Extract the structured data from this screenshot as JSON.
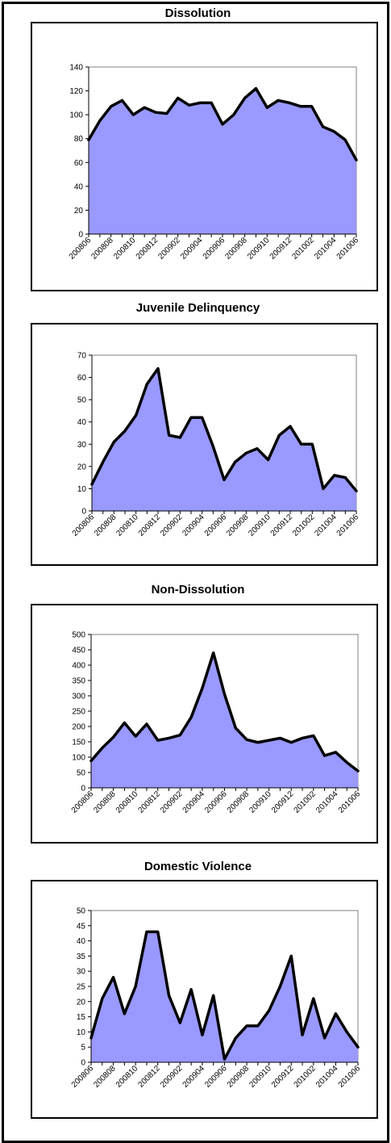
{
  "colors": {
    "fill": "#9999ff",
    "line": "#000000",
    "plot_border": "#808080"
  },
  "chart_data": [
    {
      "type": "area",
      "title": "Dissolution",
      "x": [
        "200806",
        "200807",
        "200808",
        "200809",
        "200810",
        "200811",
        "200812",
        "200901",
        "200902",
        "200903",
        "200904",
        "200905",
        "200906",
        "200907",
        "200908",
        "200909",
        "200910",
        "200911",
        "200912",
        "201001",
        "201002",
        "201003",
        "201004",
        "201005",
        "201006"
      ],
      "x_tick_labels": [
        "200806",
        "200808",
        "200810",
        "200812",
        "200902",
        "200904",
        "200906",
        "200908",
        "200910",
        "200912",
        "201002",
        "201004",
        "201006"
      ],
      "values": [
        79,
        95,
        107,
        112,
        100,
        106,
        102,
        101,
        114,
        108,
        110,
        110,
        92,
        100,
        114,
        122,
        106,
        112,
        110,
        107,
        107,
        90,
        86,
        79,
        62
      ],
      "ylim": [
        0,
        140
      ],
      "yticks": [
        0,
        20,
        40,
        60,
        80,
        100,
        120,
        140
      ],
      "grid": false
    },
    {
      "type": "area",
      "title": "Juvenile Delinquency",
      "x": [
        "200806",
        "200807",
        "200808",
        "200809",
        "200810",
        "200811",
        "200812",
        "200901",
        "200902",
        "200903",
        "200904",
        "200905",
        "200906",
        "200907",
        "200908",
        "200909",
        "200910",
        "200911",
        "200912",
        "201001",
        "201002",
        "201003",
        "201004",
        "201005",
        "201006"
      ],
      "x_tick_labels": [
        "200806",
        "200808",
        "200810",
        "200812",
        "200902",
        "200904",
        "200906",
        "200908",
        "200910",
        "200912",
        "201002",
        "201004",
        "201006"
      ],
      "values": [
        12,
        22,
        31,
        36,
        43,
        57,
        64,
        34,
        33,
        42,
        42,
        29,
        14,
        22,
        26,
        28,
        23,
        34,
        38,
        30,
        30,
        10,
        16,
        15,
        9
      ],
      "ylim": [
        0,
        70
      ],
      "yticks": [
        0,
        10,
        20,
        30,
        40,
        50,
        60,
        70
      ],
      "grid": false
    },
    {
      "type": "area",
      "title": "Non-Dissolution",
      "x": [
        "200806",
        "200807",
        "200808",
        "200809",
        "200810",
        "200811",
        "200812",
        "200901",
        "200902",
        "200903",
        "200904",
        "200905",
        "200906",
        "200907",
        "200908",
        "200909",
        "200910",
        "200911",
        "200912",
        "201001",
        "201002",
        "201003",
        "201004",
        "201005",
        "201006"
      ],
      "x_tick_labels": [
        "200806",
        "200808",
        "200810",
        "200812",
        "200902",
        "200904",
        "200906",
        "200908",
        "200910",
        "200912",
        "201002",
        "201004",
        "201006"
      ],
      "values": [
        88,
        130,
        165,
        212,
        168,
        208,
        155,
        162,
        172,
        230,
        325,
        440,
        305,
        195,
        157,
        148,
        155,
        162,
        148,
        162,
        170,
        105,
        116,
        83,
        55
      ],
      "ylim": [
        0,
        500
      ],
      "yticks": [
        0,
        50,
        100,
        150,
        200,
        250,
        300,
        350,
        400,
        450,
        500
      ],
      "grid": false
    },
    {
      "type": "area",
      "title": "Domestic Violence",
      "x": [
        "200806",
        "200807",
        "200808",
        "200809",
        "200810",
        "200811",
        "200812",
        "200901",
        "200902",
        "200903",
        "200904",
        "200905",
        "200906",
        "200907",
        "200908",
        "200909",
        "200910",
        "200911",
        "200912",
        "201001",
        "201002",
        "201003",
        "201004",
        "201005",
        "201006"
      ],
      "x_tick_labels": [
        "200806",
        "200808",
        "200810",
        "200812",
        "200902",
        "200904",
        "200906",
        "200908",
        "200910",
        "200912",
        "201002",
        "201004",
        "201006"
      ],
      "values": [
        8,
        21,
        28,
        16,
        25,
        43,
        43,
        22,
        13,
        24,
        9,
        22,
        1,
        8,
        12,
        12,
        17,
        25,
        35,
        9,
        21,
        8,
        16,
        10,
        5
      ],
      "ylim": [
        0,
        50
      ],
      "yticks": [
        0,
        5,
        10,
        15,
        20,
        25,
        30,
        35,
        40,
        45,
        50
      ],
      "grid": false
    }
  ]
}
